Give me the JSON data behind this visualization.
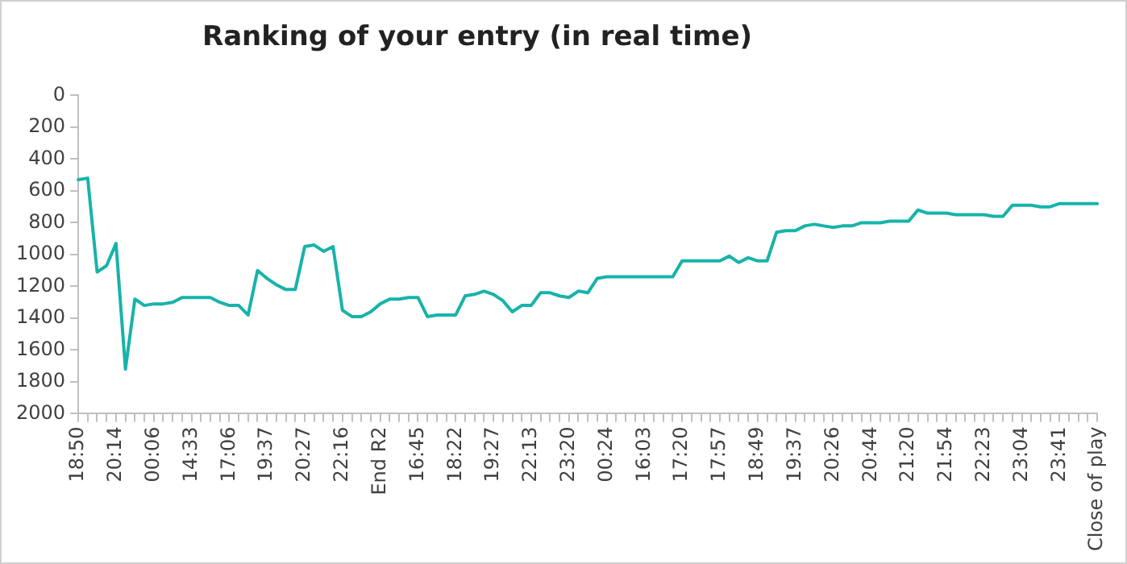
{
  "chart_data": {
    "type": "line",
    "title": "Ranking of your entry (in real time)",
    "categories": [
      "18:50",
      null,
      null,
      null,
      "20:14",
      null,
      null,
      null,
      "00:06",
      null,
      null,
      null,
      "14:33",
      null,
      null,
      null,
      "17:06",
      null,
      null,
      null,
      "19:37",
      null,
      null,
      null,
      "20:27",
      null,
      null,
      null,
      "22:16",
      null,
      null,
      null,
      "End R2",
      null,
      null,
      null,
      "16:45",
      null,
      null,
      null,
      "18:22",
      null,
      null,
      null,
      "19:27",
      null,
      null,
      null,
      "22:13",
      null,
      null,
      null,
      "23:20",
      null,
      null,
      null,
      "00:24",
      null,
      null,
      null,
      "16:03",
      null,
      null,
      null,
      "17:20",
      null,
      null,
      null,
      "17:57",
      null,
      null,
      null,
      "18:49",
      null,
      null,
      null,
      "19:37",
      null,
      null,
      null,
      "20:26",
      null,
      null,
      null,
      "20:44",
      null,
      null,
      null,
      "21:20",
      null,
      null,
      null,
      "21:54",
      null,
      null,
      null,
      "22:23",
      null,
      null,
      null,
      "23:04",
      null,
      null,
      null,
      "23:41",
      null,
      null,
      null,
      "Close of play"
    ],
    "series": [
      {
        "color": "#17b3aa",
        "values": [
          530,
          520,
          1110,
          1070,
          930,
          1720,
          1280,
          1320,
          1310,
          1310,
          1300,
          1270,
          1270,
          1270,
          1270,
          1300,
          1320,
          1320,
          1380,
          1100,
          1150,
          1190,
          1220,
          1220,
          950,
          940,
          980,
          950,
          1350,
          1390,
          1390,
          1360,
          1310,
          1280,
          1280,
          1270,
          1270,
          1390,
          1380,
          1380,
          1380,
          1260,
          1250,
          1230,
          1250,
          1290,
          1360,
          1320,
          1320,
          1240,
          1240,
          1260,
          1270,
          1230,
          1240,
          1150,
          1140,
          1140,
          1140,
          1140,
          1140,
          1140,
          1140,
          1140,
          1040,
          1040,
          1040,
          1040,
          1040,
          1010,
          1050,
          1020,
          1040,
          1040,
          860,
          850,
          850,
          820,
          810,
          820,
          830,
          820,
          820,
          800,
          800,
          800,
          790,
          790,
          790,
          720,
          740,
          740,
          740,
          750,
          750,
          750,
          750,
          760,
          760,
          690,
          690,
          690,
          700,
          700,
          680,
          680,
          680,
          680,
          680
        ]
      }
    ],
    "ylim": [
      2000,
      0
    ],
    "yticks": [
      0,
      200,
      400,
      600,
      800,
      1000,
      1200,
      1400,
      1600,
      1800,
      2000
    ],
    "grid": false,
    "legend": false,
    "marker": "none",
    "line_style": "solid"
  }
}
